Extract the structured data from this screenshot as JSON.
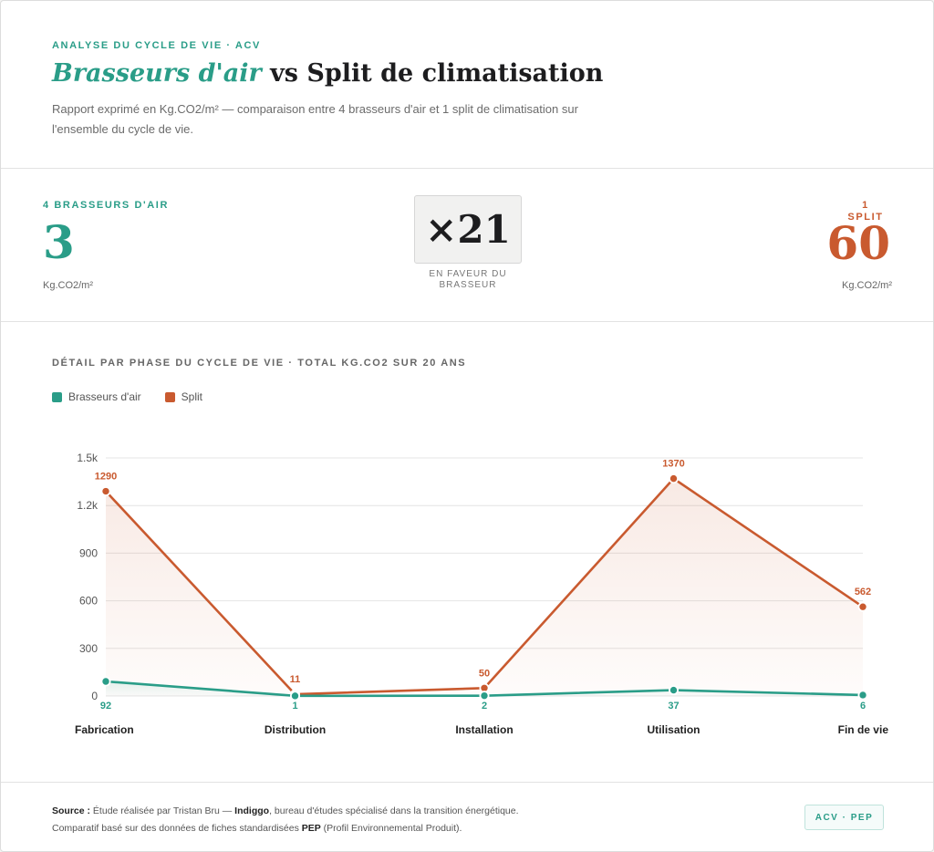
{
  "header": {
    "eyebrow": "ANALYSE DU CYCLE DE VIE · ACV",
    "title_accent": "Brasseurs d'air",
    "title_rest": " vs Split de climatisation",
    "subtitle": "Rapport exprimé en Kg.CO2/m² — comparaison entre 4 brasseurs d'air et 1 split de climatisation sur l'ensemble du cycle de vie."
  },
  "comparison": {
    "left": {
      "label": "4 BRASSEURS D'AIR",
      "value": "3",
      "unit": "Kg.CO2/m²"
    },
    "ratio": {
      "value": "×21",
      "caption": "EN FAVEUR DU BRASSEUR"
    },
    "right": {
      "label": "1 SPLIT",
      "value": "60",
      "unit": "Kg.CO2/m²"
    }
  },
  "chart_data": {
    "type": "line",
    "title": "DÉTAIL PAR PHASE DU CYCLE DE VIE · TOTAL KG.CO2 SUR 20 ANS",
    "categories": [
      "Fabrication",
      "Distribution",
      "Installation",
      "Utilisation",
      "Fin de vie"
    ],
    "series": [
      {
        "name": "Brasseurs d'air",
        "color": "#2a9d88",
        "values": [
          92,
          1,
          2,
          37,
          6
        ]
      },
      {
        "name": "Split",
        "color": "#c95a2f",
        "values": [
          1290,
          11,
          50,
          1370,
          562
        ]
      }
    ],
    "yticks": [
      "0",
      "300",
      "600",
      "900",
      "1.2k",
      "1.5k"
    ],
    "ylim": [
      0,
      1500
    ],
    "grid": true,
    "legend": "top-left"
  },
  "footer": {
    "source_label": "Source :",
    "source_pre": " Étude réalisée par Tristan Bru — ",
    "source_org": "Indiggo",
    "source_post": ", bureau d'études spécialisé dans la transition énergétique.",
    "line2_pre": "Comparatif basé sur des données de fiches standardisées ",
    "line2_bold": "PEP",
    "line2_post": " (Profil Environnemental Produit).",
    "badge": "ACV · PEP"
  }
}
